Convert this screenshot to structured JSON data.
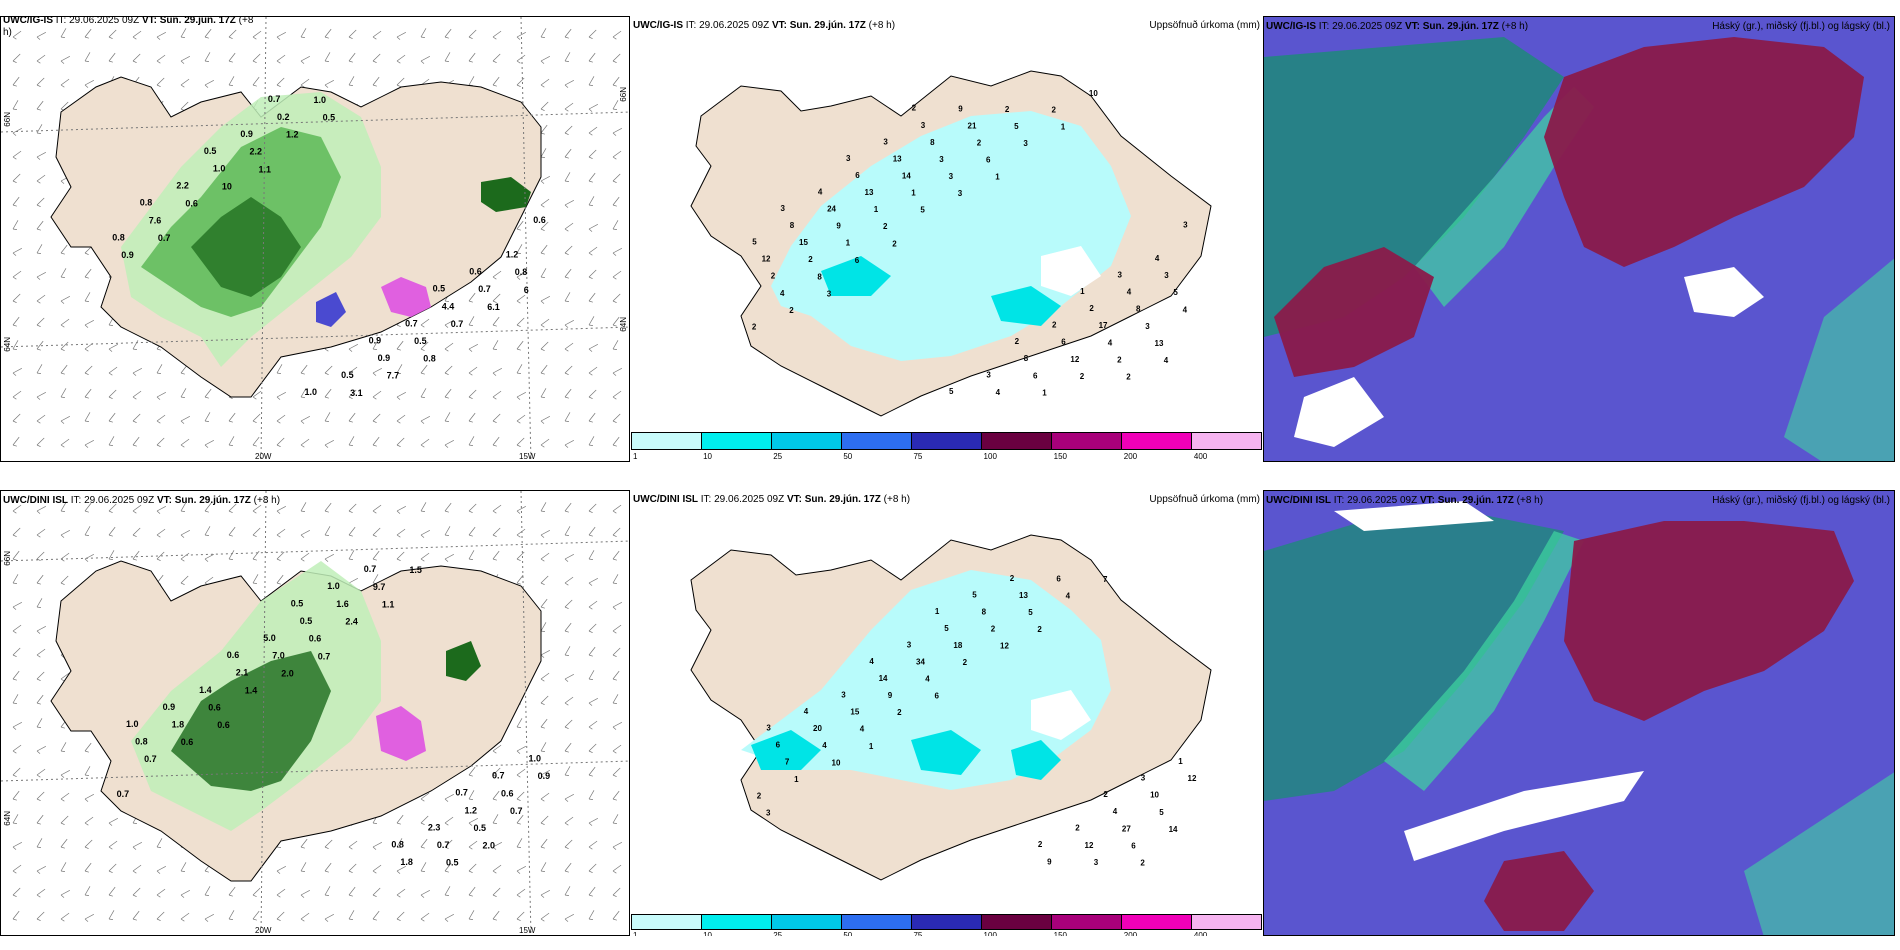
{
  "rows": [
    {
      "wind_panel": {
        "model": "UWC/IG-IS",
        "it_label": "IT:",
        "it_value": "29.06.2025 09Z",
        "vt_label": "VT: Sun. 29.jún. 17Z",
        "lead": "(+8",
        "lead2": "h)",
        "lat_labels": [
          "66N",
          "64N"
        ],
        "lon_labels": [
          "20W",
          "15W"
        ],
        "values": [
          "0.5",
          "0.7",
          "0.6",
          "0.9",
          "0.5",
          "0.6",
          "1.0",
          "0.8",
          "0.7",
          "0.9",
          "1.2",
          "0.5",
          "2.2",
          "4.4",
          "0.2",
          "0.8",
          "0.9",
          "1.0",
          "0.7",
          "1.0",
          "7.6",
          "0.5",
          "2.2",
          "0.8",
          "3.1",
          "0.6",
          "0.7",
          "1.2",
          "0.9",
          "7.7",
          "10",
          "6.1",
          "0.5",
          "0.7",
          "0.8",
          "1.1",
          "6"
        ]
      },
      "precip_panel": {
        "model": "UWC/IG-IS",
        "it_label": "IT: 29.06.2025 09Z",
        "vt_label": "VT: Sun. 29.jún. 17Z",
        "lead": "(+8 h)",
        "right_title": "Uppsöfnuð úrkoma (mm)",
        "values": [
          "1",
          "2",
          "3",
          "2",
          "3",
          "3",
          "5",
          "3",
          "2",
          "3",
          "4",
          "3",
          "4",
          "2",
          "3",
          "5",
          "8",
          "6",
          "4",
          "9",
          "8",
          "6",
          "13",
          "3",
          "4",
          "24",
          "17",
          "8",
          "12",
          "6",
          "13",
          "8",
          "21",
          "15",
          "12",
          "14",
          "5",
          "2",
          "9",
          "4",
          "3",
          "2",
          "1",
          "1",
          "3",
          "2",
          "2",
          "2",
          "1",
          "4",
          "5",
          "1",
          "2",
          "3",
          "4",
          "2",
          "2",
          "13",
          "6",
          "8",
          "10",
          "5",
          "2",
          "3",
          "6",
          "2",
          "3",
          "2",
          "1",
          "2",
          "4",
          "1",
          "3"
        ]
      },
      "cloud_panel": {
        "model": "UWC/IG-IS",
        "it_label": "IT: 29.06.2025 09Z",
        "vt_label": "VT: Sun. 29.jún. 17Z",
        "lead": "(+8 h)",
        "right_title": "Háský (gr.), miðský (fj.bl.) og lágský (bl.)"
      }
    },
    {
      "wind_panel": {
        "model": "UWC/DINI ISL",
        "it_label": "IT:",
        "it_value": "29.06.2025 09Z",
        "vt_label": "VT: Sun. 29.jún. 17Z",
        "lead": "(+8 h)",
        "lead2": "",
        "lat_labels": [
          "66N",
          "64N"
        ],
        "lon_labels": [
          "20W",
          "15W"
        ],
        "values": [
          "0.7",
          "0.5",
          "1.0",
          "0.8",
          "0.6",
          "0.7",
          "1.0",
          "0.9",
          "2.3",
          "5.0",
          "1.0",
          "0.7",
          "1.4",
          "1.2",
          "0.5",
          "0.8",
          "1.8",
          "2.1",
          "0.6",
          "1.6",
          "1.8",
          "0.7",
          "7.0",
          "0.9",
          "9.7",
          "0.6",
          "0.5",
          "0.6",
          "0.7",
          "1.5",
          "1.4",
          "0.7",
          "2.4",
          "0.6",
          "0.5",
          "2.0",
          "0.7",
          "1.1",
          "0.6",
          "2.0",
          "0.7"
        ]
      },
      "precip_panel": {
        "model": "UWC/DINI ISL",
        "it_label": "IT: 29.06.2025 09Z",
        "vt_label": "VT: Sun. 29.jún. 17Z",
        "lead": "(+8 h)",
        "right_title": "Uppsöfnuð úrkoma (mm)",
        "values": [
          "2",
          "1",
          "3",
          "2",
          "4",
          "3",
          "5",
          "4",
          "2",
          "3",
          "1",
          "2",
          "3",
          "4",
          "5",
          "6",
          "9",
          "14",
          "10",
          "8",
          "20",
          "12",
          "34",
          "12",
          "13",
          "15",
          "27",
          "18",
          "7",
          "6",
          "9",
          "5",
          "2",
          "4",
          "3",
          "4",
          "2",
          "5",
          "4",
          "6",
          "2",
          "1",
          "4",
          "2",
          "14",
          "12",
          "10",
          "7",
          "6",
          "3",
          "2",
          "1",
          "2"
        ]
      },
      "cloud_panel": {
        "model": "UWC/DINI ISL",
        "it_label": "IT: 29.06.2025 09Z",
        "vt_label": "VT: Sun. 29.jún. 17Z",
        "lead": "(+8 h)",
        "right_title": "Háský (gr.), miðský (fj.bl.) og lágský (bl.)"
      }
    }
  ],
  "legend": {
    "labels": [
      "1",
      "10",
      "25",
      "50",
      "75",
      "100",
      "150",
      "200",
      "400"
    ],
    "colors": [
      "#c8fbfb",
      "#00eded",
      "#00c8e8",
      "#2d6ef0",
      "#2a2ab4",
      "#6a0040",
      "#a8007a",
      "#f000b8",
      "#f6b4f0"
    ]
  },
  "palette": {
    "land": "#efe0d0",
    "green_light": "#bfeeb8",
    "green_mid": "#4fb14a",
    "green_dark": "#1c6a1c",
    "cyan_light": "#b8fbfb",
    "cyan": "#00e4e6",
    "cloud_blue": "#5a55cf",
    "cloud_red": "#8a1a4a",
    "cloud_teal": "#1e8a7a",
    "cloud_green": "#3fd6a0"
  }
}
